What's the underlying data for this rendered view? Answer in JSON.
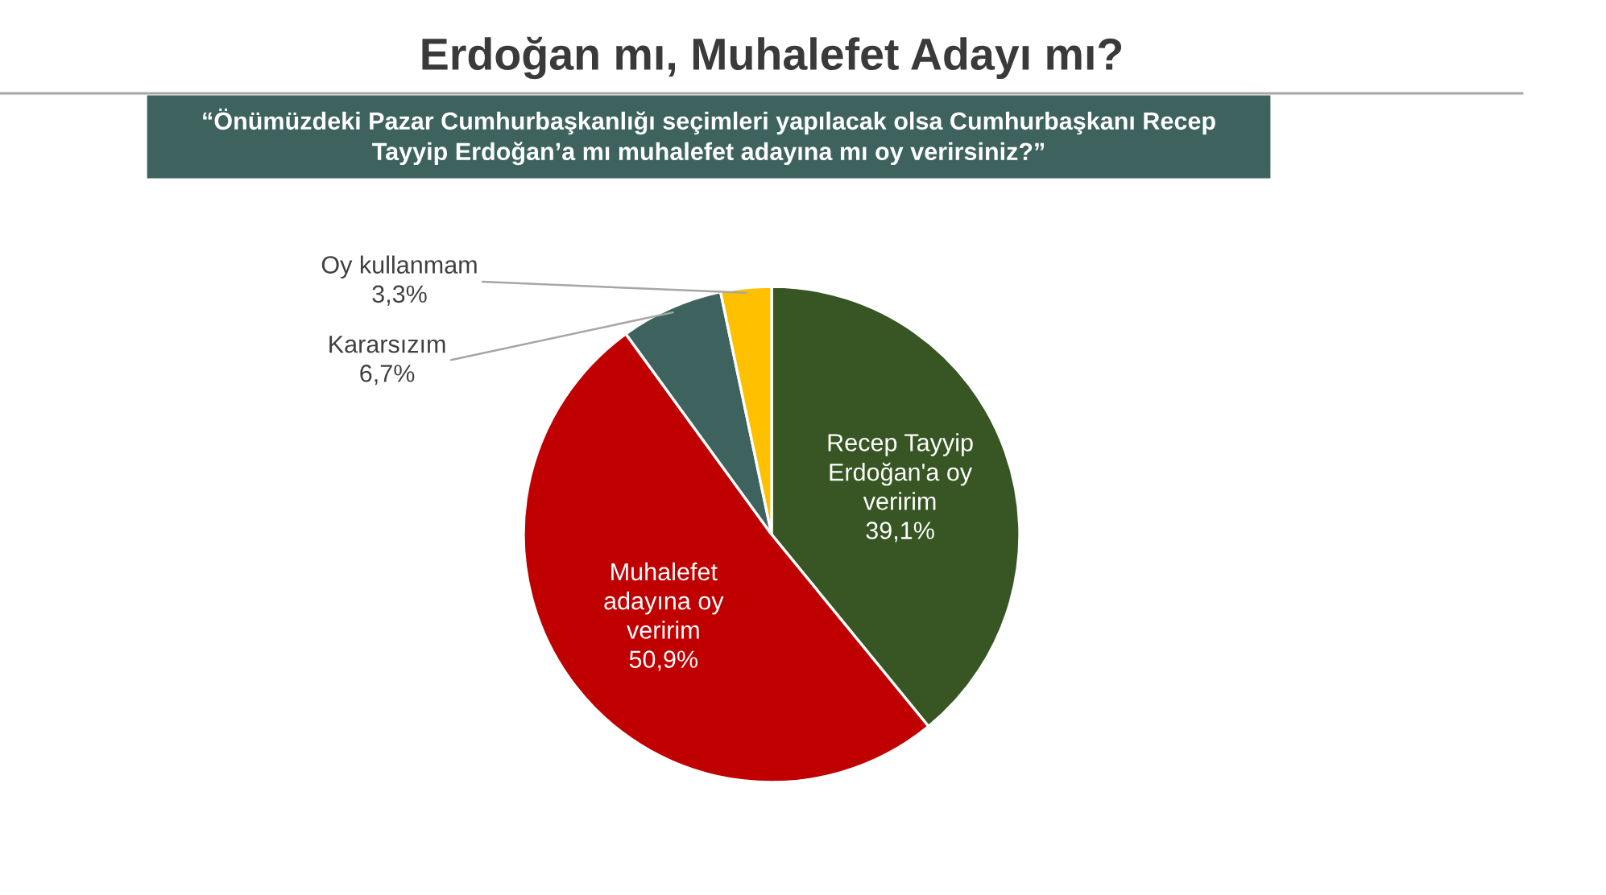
{
  "chart_data": {
    "type": "pie",
    "title": "Erdoğan mı, Muhalefet Adayı mı?",
    "subtitle": "“Önümüzdeki Pazar Cumhurbaşkanlığı seçimleri yapılacak olsa Cumhurbaşkanı Recep\nTayyip Erdoğan’a mı muhalefet adayına mı oy verirsiniz?”",
    "categories": [
      "Recep Tayyip\nErdoğan'a oy\nveririm",
      "Muhalefet\nadayına oy\nveririm",
      "Kararsızım",
      "Oy kullanmam"
    ],
    "values": [
      39.1,
      50.9,
      6.7,
      3.3
    ],
    "value_labels": [
      "39,1%",
      "50,9%",
      "6,7%",
      "3,3%"
    ],
    "colors": [
      "#375623",
      "#c00000",
      "#3e635e",
      "#ffc000"
    ]
  }
}
